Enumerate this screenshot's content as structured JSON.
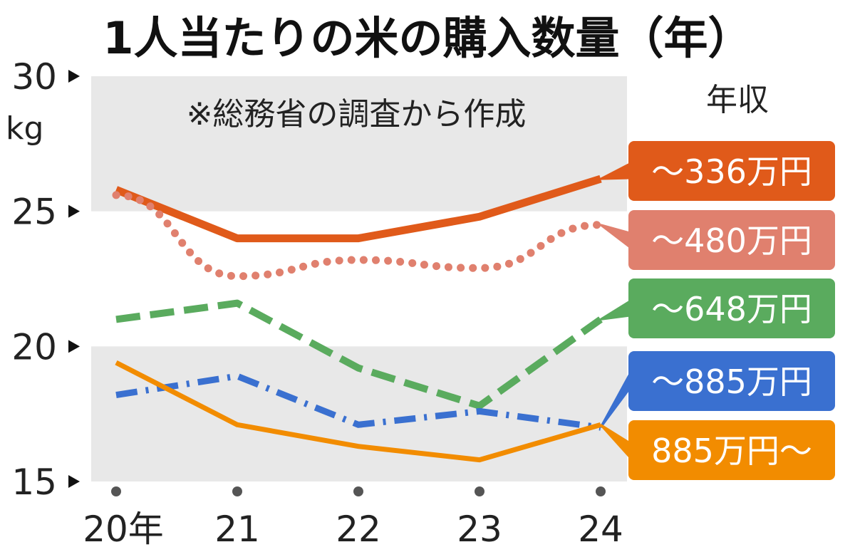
{
  "chart_data": {
    "type": "line",
    "title": "1人当たりの米の購入数量（年）",
    "note": "※総務省の調査から作成",
    "ylabel_unit": "kg",
    "legend_title": "年収",
    "ylim": [
      15,
      30
    ],
    "yticks": [
      15,
      20,
      25,
      30
    ],
    "ytick_labels": [
      "15",
      "20",
      "25",
      "30"
    ],
    "categories": [
      "20年",
      "21",
      "22",
      "23",
      "24"
    ],
    "grid": false,
    "legend_placement": "right",
    "series": [
      {
        "name": "～336万円",
        "color": "#e05a1a",
        "style": "solid",
        "values": [
          25.8,
          24.0,
          24.0,
          24.8,
          26.2
        ]
      },
      {
        "name": "～480万円",
        "color": "#e0806e",
        "style": "dotted",
        "values": [
          25.6,
          22.6,
          23.2,
          22.9,
          24.5
        ]
      },
      {
        "name": "～648万円",
        "color": "#5aab5e",
        "style": "dashed",
        "values": [
          21.0,
          21.6,
          19.2,
          17.8,
          21.0
        ]
      },
      {
        "name": "～885万円",
        "color": "#3a70d0",
        "style": "dashdot",
        "values": [
          18.2,
          18.9,
          17.1,
          17.6,
          17.0
        ]
      },
      {
        "name": "885万円～",
        "color": "#f28c00",
        "style": "solid-thin",
        "values": [
          19.4,
          17.1,
          16.3,
          15.8,
          17.1
        ]
      }
    ]
  }
}
